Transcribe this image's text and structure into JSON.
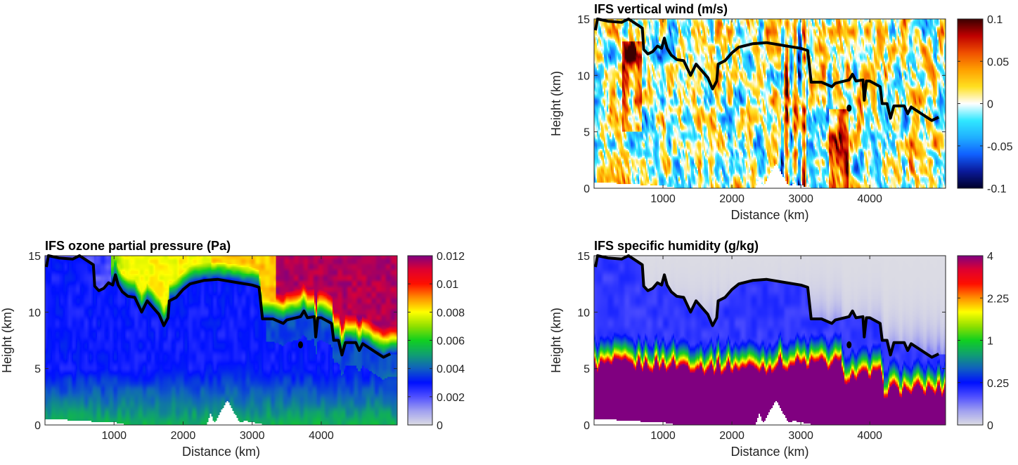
{
  "chart_data": [
    {
      "id": "wind",
      "type": "heatmap",
      "title": "IFS vertical wind (m/s)",
      "xlabel": "Distance (km)",
      "ylabel": "Height (km)",
      "xlim": [
        0,
        5100
      ],
      "ylim": [
        0,
        15
      ],
      "xticks": [
        1000,
        2000,
        3000,
        4000
      ],
      "yticks": [
        0,
        5,
        10,
        15
      ],
      "colorbar": {
        "ticks": [
          "-0.1",
          "-0.05",
          "0",
          "0.05",
          "0.1"
        ],
        "values": [
          -0.1,
          -0.05,
          0,
          0.05,
          0.1
        ],
        "range": [
          -0.1,
          0.1
        ],
        "scale": "linear"
      },
      "colormap": [
        "#00002a",
        "#0a1a9a",
        "#1060ff",
        "#20b0ff",
        "#30e8ff",
        "#ffffff",
        "#ffe020",
        "#ffa000",
        "#f05000",
        "#c00000",
        "#3a0000"
      ]
    },
    {
      "id": "ozone",
      "type": "heatmap",
      "title": "IFS ozone partial pressure (Pa)",
      "xlabel": "Distance (km)",
      "ylabel": "Height (km)",
      "xlim": [
        0,
        5100
      ],
      "ylim": [
        0,
        15
      ],
      "xticks": [
        1000,
        2000,
        3000,
        4000
      ],
      "yticks": [
        0,
        5,
        10,
        15
      ],
      "colorbar": {
        "ticks": [
          "0",
          "0.002",
          "0.004",
          "0.006",
          "0.008",
          "0.01",
          "0.012"
        ],
        "values": [
          0,
          0.002,
          0.004,
          0.006,
          0.008,
          0.01,
          0.012
        ],
        "range": [
          0,
          0.012
        ],
        "scale": "linear"
      },
      "colormap": [
        "#dcdce4",
        "#a0a0f0",
        "#5050ff",
        "#0010ff",
        "#1060c0",
        "#10a070",
        "#10d020",
        "#90e000",
        "#ffff00",
        "#ff9000",
        "#ff1000",
        "#e00030",
        "#800080"
      ]
    },
    {
      "id": "humidity",
      "type": "heatmap",
      "title": "IFS specific humidity (g/kg)",
      "xlabel": "Distance (km)",
      "ylabel": "Height (km)",
      "xlim": [
        0,
        5100
      ],
      "ylim": [
        0,
        15
      ],
      "xticks": [
        1000,
        2000,
        3000,
        4000
      ],
      "yticks": [
        0,
        5,
        10,
        15
      ],
      "colorbar": {
        "ticks": [
          "0",
          "0.25",
          "1",
          "2.25",
          "4"
        ],
        "values": [
          0,
          0.25,
          1,
          2.25,
          4
        ],
        "range": [
          0,
          4
        ],
        "scale": "sqrt"
      },
      "colormap": [
        "#dcdce4",
        "#a0a0f0",
        "#5050ff",
        "#0010ff",
        "#1060c0",
        "#10a070",
        "#10d020",
        "#90e000",
        "#ffff00",
        "#ff9000",
        "#ff1000",
        "#e00030",
        "#800080"
      ]
    }
  ],
  "tropopause": {
    "distance_km": [
      20,
      50,
      200,
      400,
      500,
      600,
      700,
      720,
      780,
      850,
      920,
      980,
      1020,
      1060,
      1120,
      1200,
      1300,
      1400,
      1480,
      1550,
      1650,
      1720,
      1780,
      1800,
      1900,
      2000,
      2100,
      2300,
      2500,
      2600,
      2800,
      3000,
      3100,
      3150,
      3300,
      3450,
      3500,
      3700,
      3750,
      3800,
      3900,
      3920,
      3950,
      4000,
      4150,
      4180,
      4250,
      4300,
      4350,
      4500,
      4550,
      4600,
      4800,
      4900,
      5000
    ],
    "height_km": [
      14,
      15,
      14.8,
      14.7,
      15,
      14.6,
      14.2,
      12.3,
      11.9,
      12.1,
      12.6,
      12.4,
      13.3,
      12.4,
      11.8,
      11.4,
      11.3,
      10,
      11,
      10.5,
      9.8,
      8.8,
      9.5,
      11,
      11.3,
      12,
      12.5,
      12.8,
      12.9,
      12.8,
      12.6,
      12.4,
      12.2,
      9.4,
      9.4,
      9.0,
      9.3,
      9.6,
      10.1,
      9.5,
      9.6,
      7.8,
      9.5,
      9.5,
      9.0,
      7.5,
      7.5,
      6.2,
      7.3,
      7.3,
      6.6,
      7.2,
      6.4,
      6.0,
      6.3
    ],
    "marker": {
      "distance_km": 3700,
      "height_km": 7.1
    }
  }
}
